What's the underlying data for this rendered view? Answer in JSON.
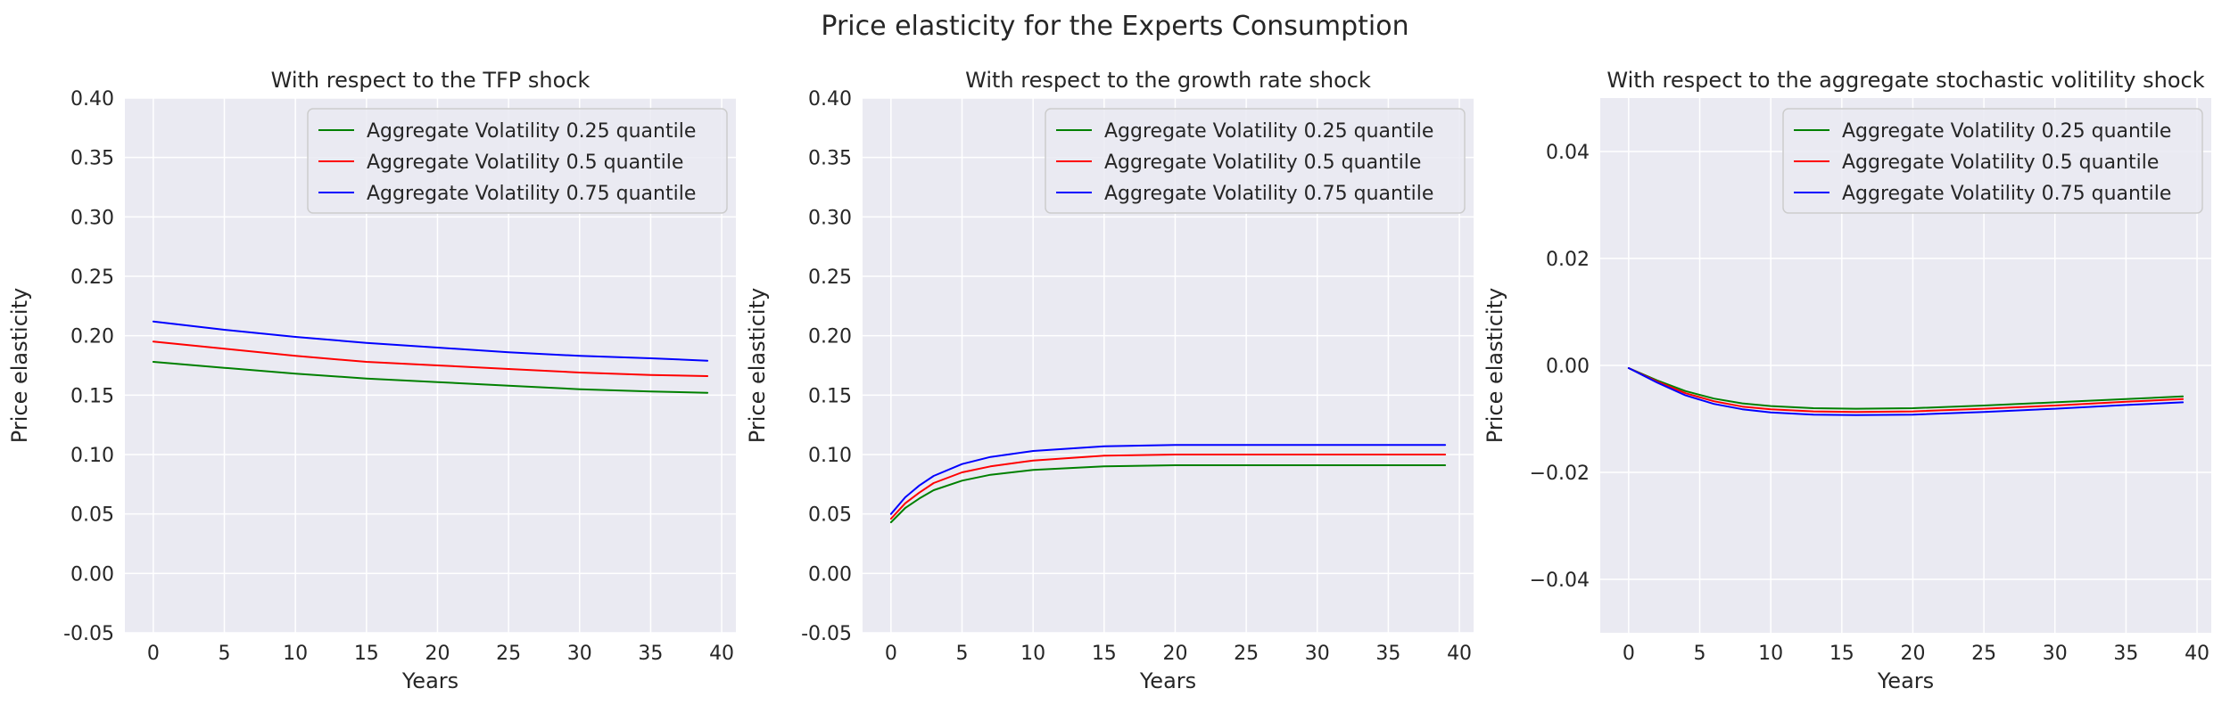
{
  "figure": {
    "title": "Price elasticity for the Experts Consumption"
  },
  "colors": {
    "plot_background": "#eaeaf2",
    "grid": "#ffffff",
    "text": "#262626"
  },
  "chart_data": [
    {
      "type": "line",
      "title": "With respect to the TFP shock",
      "xlabel": "Years",
      "ylabel": "Price elasticity",
      "xlim": [
        -2,
        41
      ],
      "ylim": [
        -0.05,
        0.4
      ],
      "xticks": [
        0,
        5,
        10,
        15,
        20,
        25,
        30,
        35,
        40
      ],
      "yticks": [
        -0.05,
        0.0,
        0.05,
        0.1,
        0.15,
        0.2,
        0.25,
        0.3,
        0.35,
        0.4
      ],
      "ytick_decimals": 2,
      "ytick_minus": "hyphen",
      "grid": true,
      "legend_position": "top-right",
      "x": [
        0,
        5,
        10,
        15,
        20,
        25,
        30,
        35,
        39
      ],
      "series": [
        {
          "name": "Aggregate Volatility 0.25 quantile",
          "color": "#008000",
          "values": [
            0.178,
            0.173,
            0.168,
            0.164,
            0.161,
            0.158,
            0.155,
            0.153,
            0.152
          ]
        },
        {
          "name": "Aggregate Volatility 0.5 quantile",
          "color": "#ff0000",
          "values": [
            0.195,
            0.189,
            0.183,
            0.178,
            0.175,
            0.172,
            0.169,
            0.167,
            0.166
          ]
        },
        {
          "name": "Aggregate Volatility 0.75 quantile",
          "color": "#0000ff",
          "values": [
            0.212,
            0.205,
            0.199,
            0.194,
            0.19,
            0.186,
            0.183,
            0.181,
            0.179
          ]
        }
      ]
    },
    {
      "type": "line",
      "title": "With respect to the growth rate shock",
      "xlabel": "Years",
      "ylabel": "Price elasticity",
      "xlim": [
        -2,
        41
      ],
      "ylim": [
        -0.05,
        0.4
      ],
      "xticks": [
        0,
        5,
        10,
        15,
        20,
        25,
        30,
        35,
        40
      ],
      "yticks": [
        -0.05,
        0.0,
        0.05,
        0.1,
        0.15,
        0.2,
        0.25,
        0.3,
        0.35,
        0.4
      ],
      "ytick_decimals": 2,
      "ytick_minus": "hyphen",
      "grid": true,
      "legend_position": "top-right",
      "x": [
        0,
        1,
        2,
        3,
        5,
        7,
        10,
        15,
        20,
        25,
        30,
        35,
        39
      ],
      "series": [
        {
          "name": "Aggregate Volatility 0.25 quantile",
          "color": "#008000",
          "values": [
            0.043,
            0.055,
            0.063,
            0.07,
            0.078,
            0.083,
            0.087,
            0.09,
            0.091,
            0.091,
            0.091,
            0.091,
            0.091
          ]
        },
        {
          "name": "Aggregate Volatility 0.5 quantile",
          "color": "#ff0000",
          "values": [
            0.046,
            0.059,
            0.068,
            0.076,
            0.085,
            0.09,
            0.095,
            0.099,
            0.1,
            0.1,
            0.1,
            0.1,
            0.1
          ]
        },
        {
          "name": "Aggregate Volatility 0.75 quantile",
          "color": "#0000ff",
          "values": [
            0.05,
            0.064,
            0.074,
            0.082,
            0.092,
            0.098,
            0.103,
            0.107,
            0.108,
            0.108,
            0.108,
            0.108,
            0.108
          ]
        }
      ]
    },
    {
      "type": "line",
      "title": "With respect to the aggregate stochastic volitility shock",
      "xlabel": "Years",
      "ylabel": "Price elasticity",
      "xlim": [
        -2,
        41
      ],
      "ylim": [
        -0.05,
        0.05
      ],
      "xticks": [
        0,
        5,
        10,
        15,
        20,
        25,
        30,
        35,
        40
      ],
      "yticks": [
        -0.04,
        -0.02,
        0.0,
        0.02,
        0.04
      ],
      "ytick_decimals": 2,
      "ytick_minus": "unicode",
      "grid": true,
      "legend_position": "top-right",
      "x": [
        0,
        2,
        4,
        6,
        8,
        10,
        13,
        16,
        20,
        25,
        30,
        35,
        39
      ],
      "series": [
        {
          "name": "Aggregate Volatility 0.25 quantile",
          "color": "#008000",
          "values": [
            -0.0005,
            -0.0028,
            -0.0048,
            -0.0062,
            -0.0071,
            -0.0076,
            -0.008,
            -0.0081,
            -0.008,
            -0.0075,
            -0.0069,
            -0.0063,
            -0.0058
          ]
        },
        {
          "name": "Aggregate Volatility 0.5 quantile",
          "color": "#ff0000",
          "values": [
            -0.0005,
            -0.003,
            -0.0052,
            -0.0067,
            -0.0077,
            -0.0082,
            -0.0086,
            -0.0087,
            -0.0086,
            -0.0081,
            -0.0075,
            -0.0068,
            -0.0063
          ]
        },
        {
          "name": "Aggregate Volatility 0.75 quantile",
          "color": "#0000ff",
          "values": [
            -0.0005,
            -0.0032,
            -0.0056,
            -0.0072,
            -0.0082,
            -0.0088,
            -0.0092,
            -0.0093,
            -0.0092,
            -0.0087,
            -0.0081,
            -0.0074,
            -0.0069
          ]
        }
      ]
    }
  ]
}
